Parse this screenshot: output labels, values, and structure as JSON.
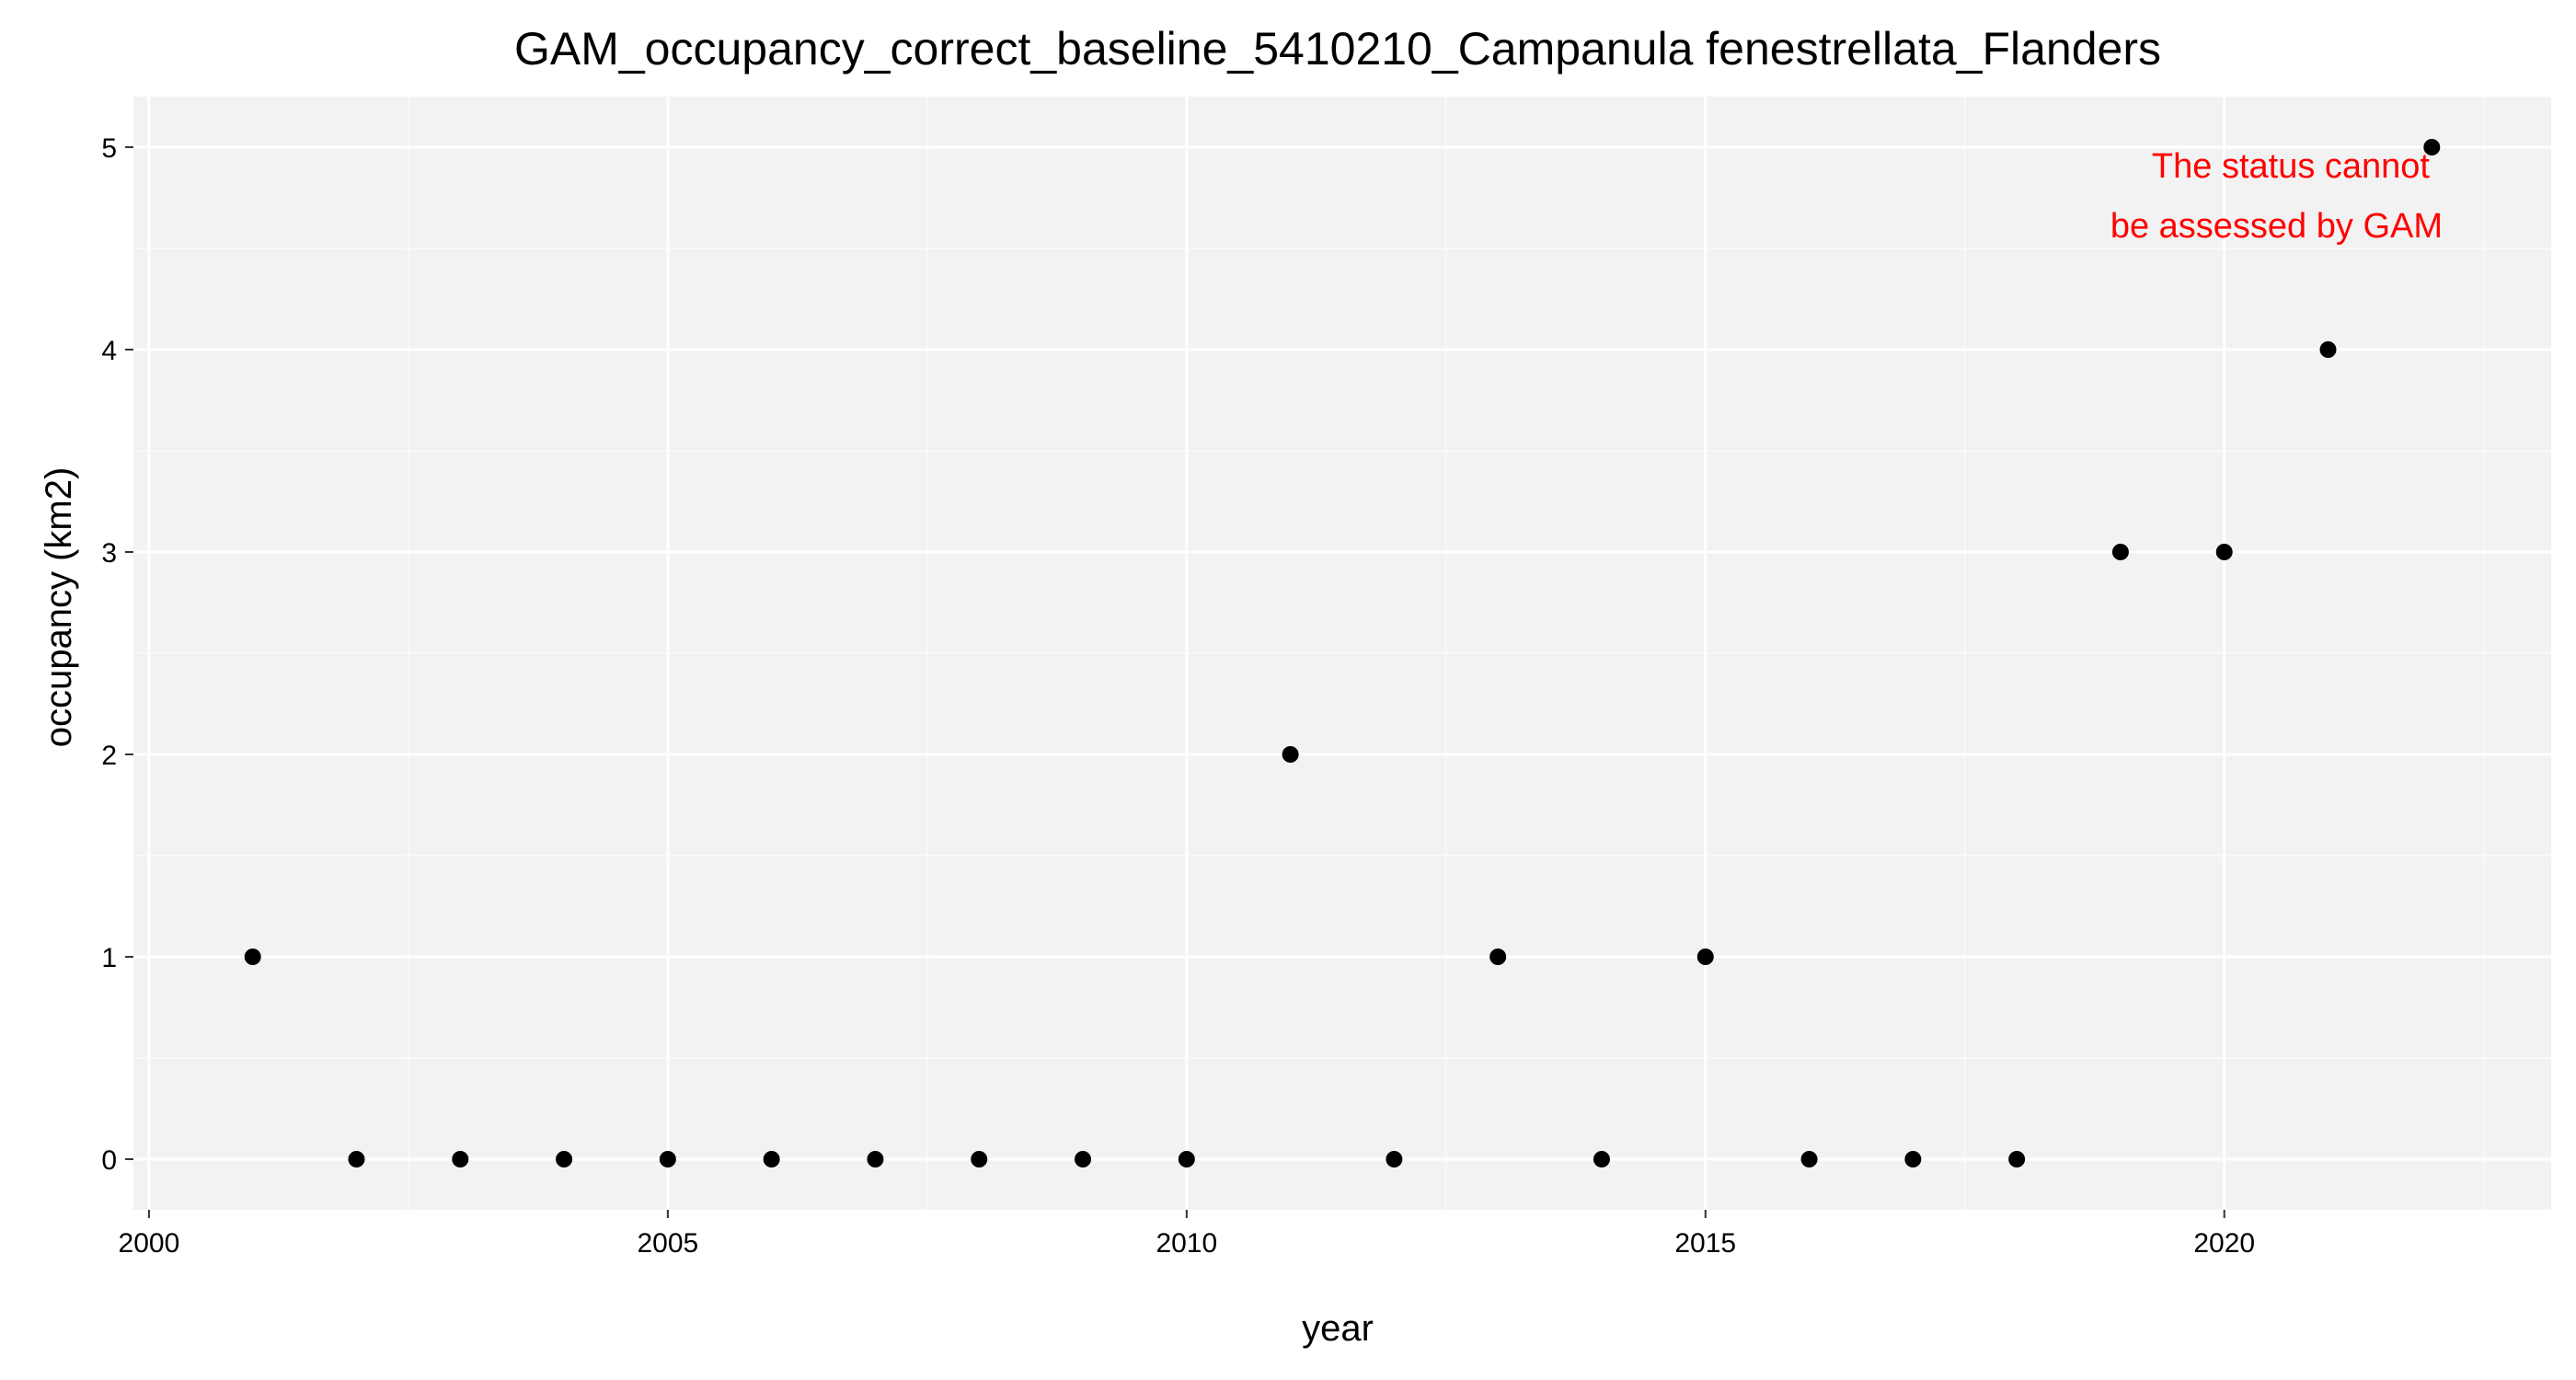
{
  "chart_data": {
    "type": "scatter",
    "title": "GAM_occupancy_correct_baseline_5410210_Campanula fenestrellata_Flanders",
    "xlabel": "year",
    "ylabel": "occupancy (km2)",
    "xlim": [
      1999.85,
      2023.15
    ],
    "ylim": [
      -0.25,
      5.25
    ],
    "x_ticks": [
      2000,
      2005,
      2010,
      2015,
      2020
    ],
    "x_tick_labels": [
      "2000",
      "2005",
      "2010",
      "2015",
      "2020"
    ],
    "y_ticks": [
      0,
      1,
      2,
      3,
      4,
      5
    ],
    "y_tick_labels": [
      "0",
      "1",
      "2",
      "3",
      "4",
      "5"
    ],
    "x_minor_ticks": [
      2002.5,
      2007.5,
      2012.5,
      2017.5,
      2022.5
    ],
    "y_minor_ticks": [
      0.5,
      1.5,
      2.5,
      3.5,
      4.5
    ],
    "grid": true,
    "background_color": "#f2f2f2",
    "point_color": "#000000",
    "series": [
      {
        "x": [
          2001,
          2002,
          2003,
          2004,
          2005,
          2006,
          2007,
          2008,
          2009,
          2010,
          2011,
          2012,
          2013,
          2014,
          2015,
          2016,
          2017,
          2018,
          2019,
          2020,
          2021,
          2022
        ],
        "y": [
          1,
          0,
          0,
          0,
          0,
          0,
          0,
          0,
          0,
          0,
          2,
          0,
          1,
          0,
          1,
          0,
          0,
          0,
          3,
          3,
          4,
          5
        ]
      }
    ],
    "annotation": {
      "lines": [
        "The status cannot",
        "be assessed by GAM"
      ],
      "color": "#ff0000",
      "placement": "top-right"
    }
  }
}
